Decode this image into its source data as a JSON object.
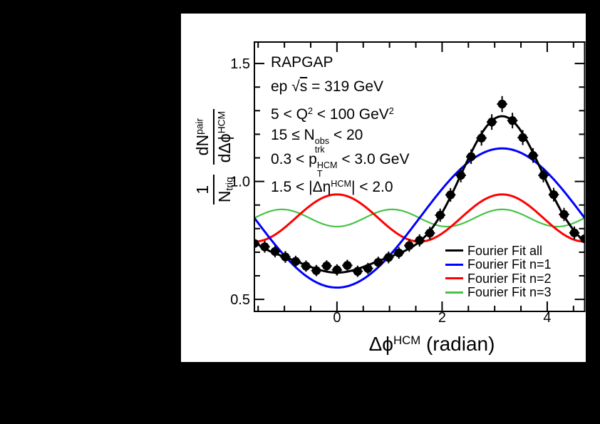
{
  "window": {
    "background": "#000000",
    "canvas_background": "#ffffff"
  },
  "annotations": {
    "lines": [
      {
        "name": "generator",
        "parts": [
          {
            "t": "RAPGAP"
          }
        ]
      },
      {
        "name": "beam-energy",
        "parts": [
          {
            "t": "ep  "
          },
          {
            "t": "√"
          },
          {
            "t": "s",
            "s": "ov"
          },
          {
            "t": " = 319 GeV"
          }
        ]
      },
      {
        "name": "q2-range",
        "parts": [
          {
            "t": "5 < Q"
          },
          {
            "t": "2",
            "s": "sup"
          },
          {
            "t": " < 100 GeV"
          },
          {
            "t": "2",
            "s": "sup"
          }
        ]
      },
      {
        "name": "multiplicity-range",
        "parts": [
          {
            "t": "15 ≤ N"
          },
          {
            "s": "stack",
            "sup": "obs",
            "sub": "trk"
          },
          {
            "t": " < 20"
          }
        ]
      },
      {
        "name": "pt-range",
        "parts": [
          {
            "t": "0.3 < p"
          },
          {
            "s": "stack",
            "sup": "HCM",
            "sub": "T"
          },
          {
            "t": " < 3.0 GeV"
          }
        ]
      },
      {
        "name": "deta-range",
        "parts": [
          {
            "t": "1.5 < |Δη"
          },
          {
            "t": "HCM",
            "s": "sup"
          },
          {
            "t": "| < 2.0"
          }
        ]
      }
    ]
  },
  "axes": {
    "x_title": {
      "parts": [
        {
          "t": "Δϕ"
        },
        {
          "t": "HCM",
          "s": "sup"
        },
        {
          "t": " (radian)"
        }
      ]
    },
    "y_title": {
      "frac1_num": "1",
      "frac1_den_base": "N",
      "frac1_den_sub": "trig",
      "frac2_num_base": "dN",
      "frac2_num_sup": "pair",
      "frac2_den_base": "dΔϕ",
      "frac2_den_sup": "HCM"
    }
  },
  "chart_data": {
    "type": "scatter",
    "title": "",
    "xlabel": "Δϕ^HCM (radian)",
    "ylabel": "(1/N_trig) dN^pair/dΔϕ^HCM",
    "x_range": [
      -1.5708,
      4.7124
    ],
    "y_range": [
      0.449,
      1.591
    ],
    "grid": false,
    "legend_position": "bottom-right-inside",
    "x_ticks": {
      "major": [
        0,
        2,
        4
      ],
      "labels": [
        "0",
        "2",
        "4"
      ],
      "minor_step": 0.5
    },
    "y_ticks": {
      "major": [
        0.5,
        1.0,
        1.5
      ],
      "labels": [
        "0.5",
        "1.0",
        "1.5"
      ],
      "minor_step": 0.1
    },
    "fourier_fit": {
      "a0": 0.845,
      "a1": -0.295,
      "a2": 0.1,
      "a3": -0.0365
    },
    "series": [
      {
        "name": "Fourier Fit all",
        "key": "all",
        "color": "#000000",
        "terms": [
          1,
          2,
          3
        ]
      },
      {
        "name": "Fourier Fit n=1",
        "key": "n1",
        "color": "#0000ff",
        "terms": [
          1
        ]
      },
      {
        "name": "Fourier Fit n=2",
        "key": "n2",
        "color": "#ff0000",
        "terms": [
          2
        ]
      },
      {
        "name": "Fourier Fit n=3",
        "key": "n3",
        "color": "#46c346",
        "terms": [
          3
        ]
      }
    ],
    "points": {
      "marker": "filled-circle",
      "color": "#000000",
      "x_half_bin_width": 0.0982,
      "x": [
        -1.5708,
        -1.3744,
        -1.1781,
        -0.9817,
        -0.7854,
        -0.589,
        -0.3927,
        -0.1963,
        0.0,
        0.1963,
        0.3927,
        0.589,
        0.7854,
        0.9817,
        1.1781,
        1.3744,
        1.5708,
        1.7671,
        1.9635,
        2.1598,
        2.3562,
        2.5525,
        2.7489,
        2.9452,
        3.1416,
        3.3379,
        3.5343,
        3.7306,
        3.927,
        4.1233,
        4.3197,
        4.516,
        4.7124
      ],
      "y": [
        0.737,
        0.723,
        0.703,
        0.68,
        0.661,
        0.641,
        0.622,
        0.642,
        0.625,
        0.644,
        0.619,
        0.631,
        0.657,
        0.678,
        0.697,
        0.728,
        0.75,
        0.781,
        0.857,
        0.943,
        1.026,
        1.105,
        1.184,
        1.252,
        1.328,
        1.258,
        1.186,
        1.11,
        1.026,
        0.944,
        0.86,
        0.782,
        0.757
      ],
      "yerr": [
        0.026,
        0.025,
        0.025,
        0.025,
        0.024,
        0.024,
        0.024,
        0.024,
        0.024,
        0.024,
        0.024,
        0.024,
        0.024,
        0.025,
        0.025,
        0.026,
        0.026,
        0.027,
        0.028,
        0.029,
        0.03,
        0.031,
        0.032,
        0.033,
        0.034,
        0.033,
        0.032,
        0.031,
        0.03,
        0.029,
        0.028,
        0.027,
        0.026
      ]
    }
  }
}
